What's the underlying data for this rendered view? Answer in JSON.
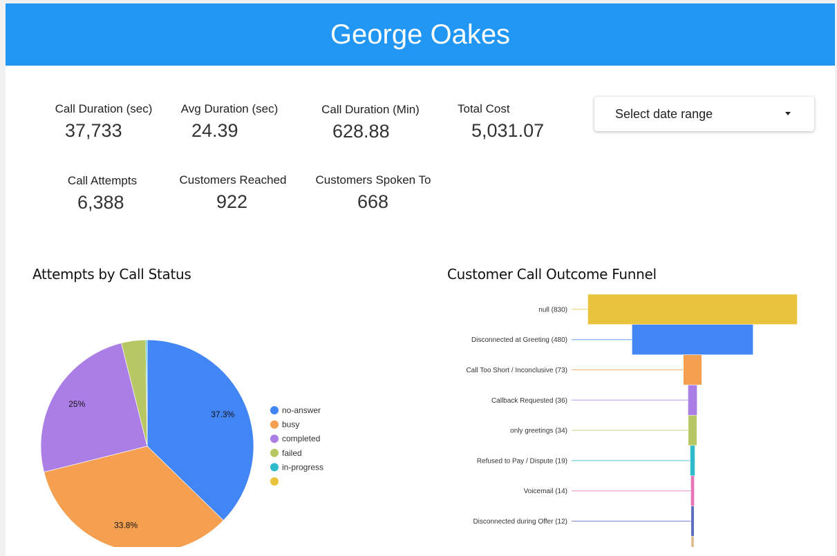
{
  "header": {
    "title": "George Oakes"
  },
  "stats": [
    {
      "label": "Call Duration (sec)",
      "value": "37,733"
    },
    {
      "label": "Avg Duration (sec)",
      "value": "24.39"
    },
    {
      "label": "Call Duration (Min)",
      "value": "628.88"
    },
    {
      "label": "Total Cost",
      "value": "5,031.07"
    },
    {
      "label": "Call Attempts",
      "value": "6,388"
    },
    {
      "label": "Customers Reached",
      "value": "922"
    },
    {
      "label": "Customers Spoken To",
      "value": "668"
    }
  ],
  "date_range": {
    "placeholder": "Select date range",
    "icon": "caret-down-icon"
  },
  "chart_data": [
    {
      "type": "pie",
      "title": "Attempts by Call Status",
      "legend": "right",
      "slices": [
        {
          "name": "no-answer",
          "value": 37.3,
          "label": "37.3%",
          "color": "#4285f4"
        },
        {
          "name": "busy",
          "value": 33.8,
          "label": "33.8%",
          "color": "#f5a051"
        },
        {
          "name": "completed",
          "value": 25.0,
          "label": "25%",
          "color": "#ab7ee6"
        },
        {
          "name": "failed",
          "value": 3.7,
          "label": "",
          "color": "#b7c764"
        },
        {
          "name": "in-progress",
          "value": 0.2,
          "label": "",
          "color": "#2ebbcb"
        },
        {
          "name": "",
          "value": 0.02,
          "label": "",
          "color": "#e9c33b"
        }
      ]
    },
    {
      "type": "funnel",
      "title": "Customer Call Outcome Funnel",
      "stages": [
        {
          "label": "null (830)",
          "value": 830,
          "color": "#e9c33b"
        },
        {
          "label": "Disconnected at Greeting (480)",
          "value": 480,
          "color": "#4285f4"
        },
        {
          "label": "Call Too Short / Inconclusive (73)",
          "value": 73,
          "color": "#f5a051"
        },
        {
          "label": "Callback Requested (36)",
          "value": 36,
          "color": "#ab7ee6"
        },
        {
          "label": "only greetings (34)",
          "value": 34,
          "color": "#b7c764"
        },
        {
          "label": "Refused to Pay / Dispute (19)",
          "value": 19,
          "color": "#2ebbcb"
        },
        {
          "label": "Voicemail (14)",
          "value": 14,
          "color": "#e774b4"
        },
        {
          "label": "Disconnected during Offer (12)",
          "value": 12,
          "color": "#5c6bc0"
        },
        {
          "label": "",
          "value": 7,
          "color": "#dcb987"
        }
      ]
    }
  ]
}
